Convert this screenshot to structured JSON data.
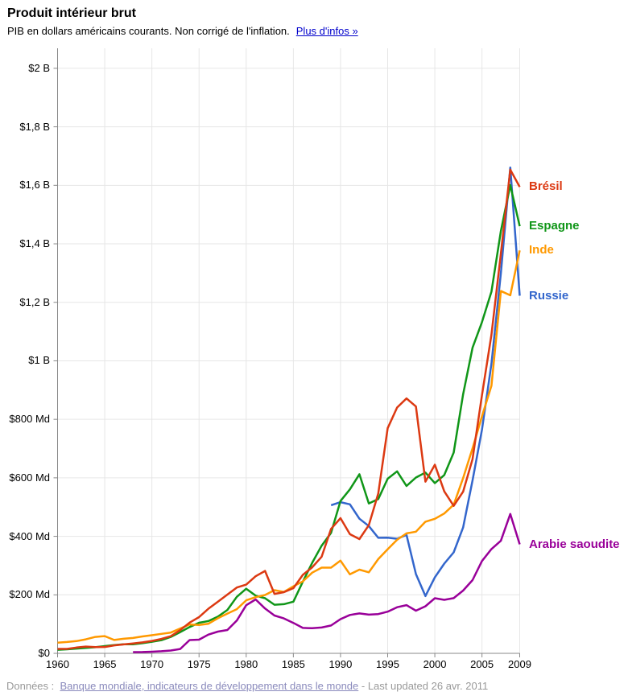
{
  "header": {
    "title": "Produit intérieur brut",
    "subtitle": "PIB en dollars américains courants. Non corrigé de l'inflation.",
    "more_info_label": "Plus d'infos »"
  },
  "footer": {
    "prefix": "Données :",
    "link_label": "Banque mondiale, indicateurs de développement dans le monde",
    "suffix": "- Last updated 26 avr. 2011"
  },
  "chart_data": {
    "type": "line",
    "title": "Produit intérieur brut",
    "xlabel": "",
    "ylabel": "PIB en dollars américains courants (milliards)",
    "x_range": [
      1960,
      2009
    ],
    "y_range_milliards": [
      0,
      2000
    ],
    "grid": true,
    "legend_position": "right-of-line-endpoints",
    "x_ticks": [
      1960,
      1965,
      1970,
      1975,
      1980,
      1985,
      1990,
      1995,
      2000,
      2005,
      2009
    ],
    "y_ticks": [
      {
        "value": 0,
        "label": "$0"
      },
      {
        "value": 200,
        "label": "$200 Md"
      },
      {
        "value": 400,
        "label": "$400 Md"
      },
      {
        "value": 600,
        "label": "$600 Md"
      },
      {
        "value": 800,
        "label": "$800 Md"
      },
      {
        "value": 1000,
        "label": "$1 B"
      },
      {
        "value": 1200,
        "label": "$1,2 B"
      },
      {
        "value": 1400,
        "label": "$1,4 B"
      },
      {
        "value": 1600,
        "label": "$1,6 B"
      },
      {
        "value": 1800,
        "label": "$1,8 B"
      },
      {
        "value": 2000,
        "label": "$2 B"
      }
    ],
    "colors": {
      "axis": "#888888",
      "gridline": "#e6e6e6",
      "russie": "#3366cc",
      "bresil": "#dc3912",
      "inde": "#ff9900",
      "espagne": "#109618",
      "arabie_saoudite": "#990099"
    },
    "series": [
      {
        "name": "Russie",
        "color": "#3366cc",
        "start_year": 1989,
        "values": [
          506.5,
          516.8,
          509.4,
          460.2,
          435.1,
          395.1,
          395.5,
          391.7,
          404.9,
          271.0,
          195.9,
          259.7,
          306.6,
          345.1,
          430.3,
          591.0,
          764.0,
          989.9,
          1299.7,
          1660.8,
          1222.6
        ]
      },
      {
        "name": "Espagne",
        "color": "#109618",
        "start_year": 1960,
        "values": [
          12.1,
          13.8,
          16.1,
          18.7,
          20.9,
          24.8,
          28.3,
          31.0,
          30.8,
          34.7,
          39.5,
          44.8,
          56.0,
          72.7,
          89.9,
          104.6,
          110.3,
          125.3,
          148.3,
          193.2,
          220.9,
          197.2,
          188.3,
          166.2,
          168.0,
          176.7,
          244.9,
          309.8,
          368.1,
          412.0,
          520.8,
          560.6,
          612.4,
          512.5,
          527.2,
          596.9,
          622.2,
          572.0,
          601.0,
          618.1,
          582.1,
          609.6,
          686.3,
          885.4,
          1044.6,
          1132.1,
          1236.5,
          1443.5,
          1600.9,
          1460.3
        ]
      },
      {
        "name": "Inde",
        "color": "#ff9900",
        "start_year": 1960,
        "values": [
          36.6,
          38.8,
          41.7,
          47.9,
          56.0,
          59.0,
          45.7,
          49.9,
          52.6,
          57.9,
          61.9,
          66.5,
          70.9,
          84.6,
          98.8,
          97.2,
          101.3,
          120.0,
          136.0,
          151.1,
          181.4,
          192.0,
          199.4,
          216.0,
          210.0,
          229.0,
          246.0,
          276.0,
          293.0,
          293.0,
          317.0,
          270.0,
          286.0,
          277.0,
          322.0,
          356.0,
          388.0,
          410.0,
          416.0,
          450.0,
          460.0,
          478.0,
          508.0,
          599.0,
          700.9,
          810.2,
          914.8,
          1238.7,
          1224.1,
          1377.3
        ]
      },
      {
        "name": "Brésil",
        "color": "#dc3912",
        "start_year": 1960,
        "values": [
          15.2,
          15.2,
          19.9,
          23.0,
          21.2,
          21.8,
          27.1,
          30.6,
          33.9,
          37.5,
          42.3,
          49.2,
          58.5,
          79.3,
          105.1,
          123.7,
          152.7,
          176.2,
          200.8,
          225.0,
          235.0,
          263.6,
          281.7,
          203.3,
          209.0,
          222.9,
          268.1,
          294.1,
          330.4,
          425.6,
          462.0,
          407.3,
          390.6,
          438.3,
          546.2,
          769.7,
          840.3,
          871.3,
          843.8,
          586.9,
          644.7,
          553.6,
          504.2,
          552.5,
          663.8,
          882.2,
          1089.2,
          1366.8,
          1653.5,
          1594.5
        ]
      },
      {
        "name": "Arabie saoudite",
        "color": "#990099",
        "start_year": 1968,
        "values": [
          4.2,
          4.4,
          5.4,
          7.2,
          9.7,
          14.9,
          45.4,
          46.8,
          64.0,
          74.2,
          79.7,
          111.9,
          164.5,
          184.3,
          153.2,
          129.2,
          119.3,
          103.9,
          87.0,
          85.7,
          88.3,
          95.3,
          116.8,
          131.3,
          136.3,
          132.2,
          134.3,
          142.5,
          157.7,
          164.9,
          145.8,
          160.9,
          188.4,
          183.0,
          188.6,
          214.6,
          250.3,
          315.6,
          356.6,
          384.9,
          476.3,
          372.7
        ]
      }
    ]
  }
}
